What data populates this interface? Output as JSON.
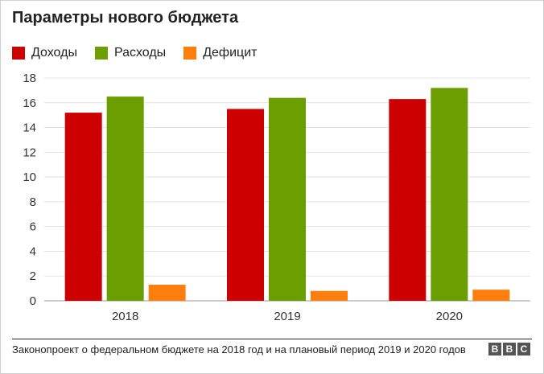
{
  "chart_data": {
    "type": "bar",
    "title": "Параметры нового бюджета",
    "categories": [
      "2018",
      "2019",
      "2020"
    ],
    "series": [
      {
        "name": "Доходы",
        "color": "#cc0000",
        "values": [
          15.2,
          15.5,
          16.3
        ]
      },
      {
        "name": "Расходы",
        "color": "#6b9e00",
        "values": [
          16.5,
          16.4,
          17.2
        ]
      },
      {
        "name": "Дефицит",
        "color": "#ff7f0e",
        "values": [
          1.3,
          0.8,
          0.9
        ]
      }
    ],
    "ylim": [
      0,
      18
    ],
    "yticks": [
      "0",
      "2",
      "4",
      "6",
      "8",
      "10",
      "12",
      "14",
      "16",
      "18"
    ],
    "grid": true,
    "legend_position": "top-left"
  },
  "footer": {
    "source": "Законопроект о федеральном бюджете на 2018 год и на плановый период 2019 и 2020 годов",
    "logo": [
      "B",
      "B",
      "C"
    ]
  }
}
